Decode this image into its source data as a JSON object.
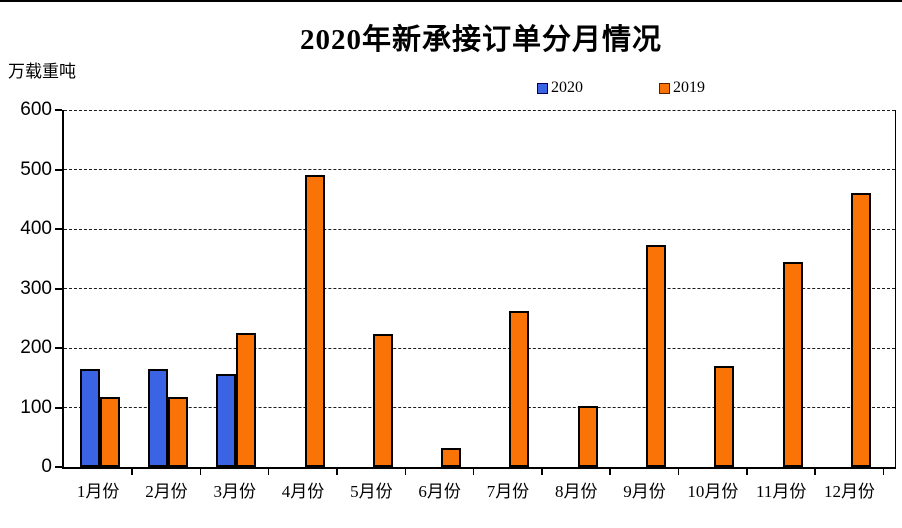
{
  "page": {
    "title": "2020年新承接订单分月情况",
    "unit_label": "万载重吨"
  },
  "legend": {
    "items": [
      {
        "label": "2020",
        "color": "#3A64E4",
        "border": "#00005A"
      },
      {
        "label": "2019",
        "color": "#F97306",
        "border": "#5A1E00"
      }
    ]
  },
  "colors": {
    "series_2020": "#3A64E4",
    "series_2019": "#F97306",
    "bar_outline": "#000000",
    "axis": "#000000",
    "background": "#FFFFFF"
  },
  "chart_data": {
    "type": "bar",
    "title": "2020年新承接订单分月情况",
    "ylabel": "万载重吨",
    "xlabel": "",
    "categories": [
      "1月份",
      "2月份",
      "3月份",
      "4月份",
      "5月份",
      "6月份",
      "7月份",
      "8月份",
      "9月份",
      "10月份",
      "11月份",
      "12月份"
    ],
    "series": [
      {
        "name": "2020",
        "color": "#3A64E4",
        "values": [
          165,
          165,
          157,
          null,
          null,
          null,
          null,
          null,
          null,
          null,
          null,
          null
        ]
      },
      {
        "name": "2019",
        "color": "#F97306",
        "values": [
          117,
          117,
          225,
          490,
          223,
          32,
          263,
          102,
          373,
          170,
          345,
          461
        ]
      }
    ],
    "ylim": [
      0,
      600
    ],
    "yticks": [
      0,
      100,
      200,
      300,
      400,
      500,
      600
    ],
    "grid": "horizontal-dashed",
    "legend_position": "top"
  }
}
